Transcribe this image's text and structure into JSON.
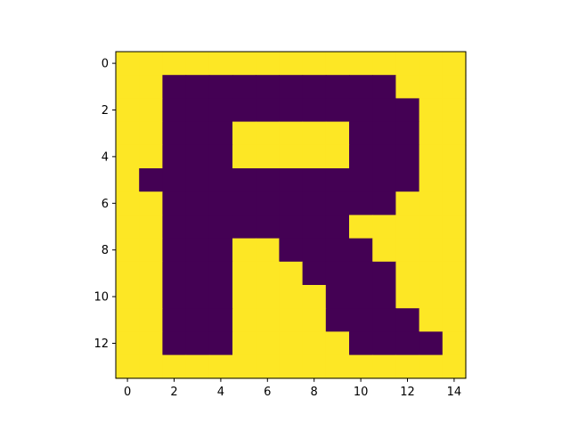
{
  "chart_data": {
    "type": "heatmap",
    "title": "",
    "xlabel": "",
    "ylabel": "",
    "colors": {
      "0": "#440154",
      "1": "#fde725"
    },
    "x_ticks": [
      0,
      2,
      4,
      6,
      8,
      10,
      12,
      14
    ],
    "y_ticks": [
      0,
      2,
      4,
      6,
      8,
      10,
      12
    ],
    "xlim": [
      -0.5,
      14.5
    ],
    "ylim": [
      13.5,
      -0.5
    ],
    "grid": false,
    "matrix": [
      [
        1,
        1,
        1,
        1,
        1,
        1,
        1,
        1,
        1,
        1,
        1,
        1,
        1,
        1,
        1
      ],
      [
        1,
        1,
        0,
        0,
        0,
        0,
        0,
        0,
        0,
        0,
        0,
        0,
        1,
        1,
        1
      ],
      [
        1,
        1,
        0,
        0,
        0,
        0,
        0,
        0,
        0,
        0,
        0,
        0,
        0,
        1,
        1
      ],
      [
        1,
        1,
        0,
        0,
        0,
        1,
        1,
        1,
        1,
        1,
        0,
        0,
        0,
        1,
        1
      ],
      [
        1,
        1,
        0,
        0,
        0,
        1,
        1,
        1,
        1,
        1,
        0,
        0,
        0,
        1,
        1
      ],
      [
        1,
        0,
        0,
        0,
        0,
        0,
        0,
        0,
        0,
        0,
        0,
        0,
        0,
        1,
        1
      ],
      [
        1,
        1,
        0,
        0,
        0,
        0,
        0,
        0,
        0,
        0,
        0,
        0,
        1,
        1,
        1
      ],
      [
        1,
        1,
        0,
        0,
        0,
        0,
        0,
        0,
        0,
        0,
        1,
        1,
        1,
        1,
        1
      ],
      [
        1,
        1,
        0,
        0,
        0,
        1,
        1,
        0,
        0,
        0,
        0,
        1,
        1,
        1,
        1
      ],
      [
        1,
        1,
        0,
        0,
        0,
        1,
        1,
        1,
        0,
        0,
        0,
        0,
        1,
        1,
        1
      ],
      [
        1,
        1,
        0,
        0,
        0,
        1,
        1,
        1,
        1,
        0,
        0,
        0,
        1,
        1,
        1
      ],
      [
        1,
        1,
        0,
        0,
        0,
        1,
        1,
        1,
        1,
        0,
        0,
        0,
        0,
        1,
        1
      ],
      [
        1,
        1,
        0,
        0,
        0,
        1,
        1,
        1,
        1,
        1,
        0,
        0,
        0,
        0,
        1
      ],
      [
        1,
        1,
        1,
        1,
        1,
        1,
        1,
        1,
        1,
        1,
        1,
        1,
        1,
        1,
        1
      ]
    ]
  }
}
